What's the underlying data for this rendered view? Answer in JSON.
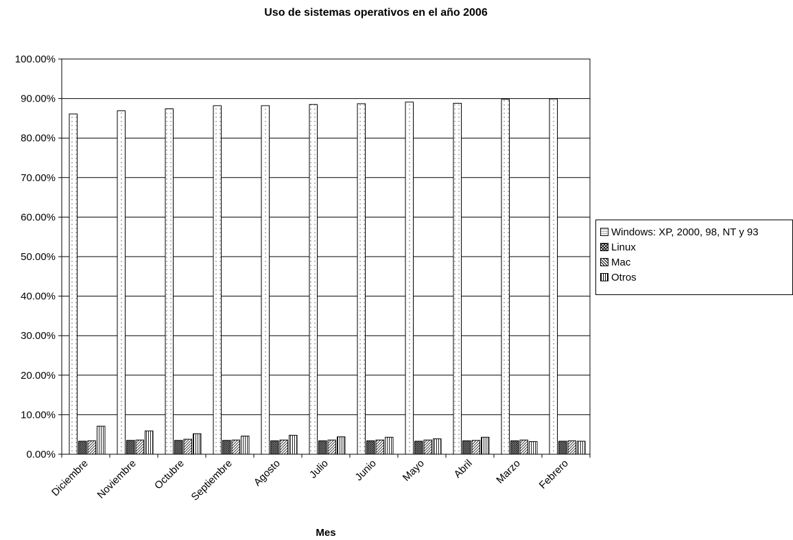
{
  "chart_data": {
    "type": "bar",
    "title": "Uso de sistemas operativos en el año 2006",
    "xlabel": "Mes",
    "ylabel": "",
    "ylim": [
      0,
      100
    ],
    "y_tick_format": "percent_2dp",
    "y_ticks": [
      "0.00%",
      "10.00%",
      "20.00%",
      "30.00%",
      "40.00%",
      "50.00%",
      "60.00%",
      "70.00%",
      "80.00%",
      "90.00%",
      "100.00%"
    ],
    "grid": true,
    "legend_position": "right",
    "categories": [
      "Diciembre",
      "Noviembre",
      "Octubre",
      "Septiembre",
      "Agosto",
      "Julio",
      "Junio",
      "Mayo",
      "Abril",
      "Marzo",
      "Febrero"
    ],
    "series": [
      {
        "name": "Windows: XP, 2000, 98, NT y 93",
        "pattern": "dots",
        "values": [
          86.1,
          86.9,
          87.4,
          88.2,
          88.2,
          88.5,
          88.7,
          89.1,
          88.8,
          89.8,
          89.9
        ]
      },
      {
        "name": "Linux",
        "pattern": "crosshatch",
        "values": [
          3.3,
          3.5,
          3.5,
          3.5,
          3.4,
          3.4,
          3.4,
          3.3,
          3.4,
          3.4,
          3.3
        ]
      },
      {
        "name": "Mac",
        "pattern": "diagonal",
        "values": [
          3.4,
          3.6,
          3.8,
          3.6,
          3.6,
          3.6,
          3.6,
          3.6,
          3.5,
          3.6,
          3.4
        ]
      },
      {
        "name": "Otros",
        "pattern": "vertical",
        "values": [
          7.1,
          5.9,
          5.2,
          4.6,
          4.8,
          4.4,
          4.3,
          3.9,
          4.3,
          3.2,
          3.3
        ]
      }
    ]
  }
}
